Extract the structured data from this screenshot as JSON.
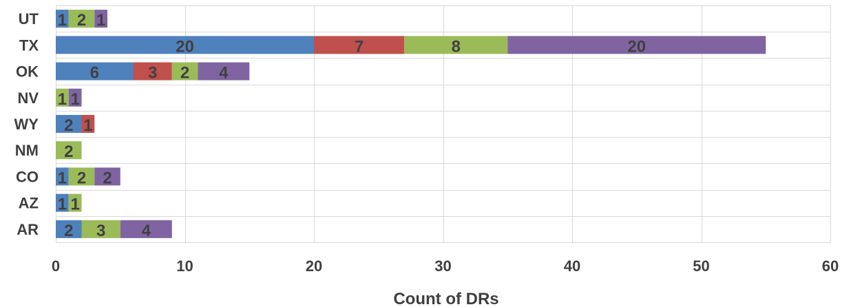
{
  "chart_data": {
    "type": "bar",
    "orientation": "horizontal",
    "stacked": true,
    "categories": [
      "UT",
      "TX",
      "OK",
      "NV",
      "WY",
      "NM",
      "CO",
      "AZ",
      "AR"
    ],
    "series": [
      {
        "color": "#4f81bd",
        "values": [
          1,
          20,
          6,
          0,
          2,
          0,
          1,
          1,
          2
        ]
      },
      {
        "color": "#c0504d",
        "values": [
          0,
          7,
          3,
          0,
          1,
          0,
          0,
          0,
          0
        ]
      },
      {
        "color": "#9bbb59",
        "values": [
          2,
          8,
          2,
          1,
          0,
          2,
          2,
          1,
          3
        ]
      },
      {
        "color": "#8064a2",
        "values": [
          1,
          20,
          4,
          1,
          0,
          0,
          2,
          0,
          4
        ]
      }
    ],
    "xlabel": "Count of DRs",
    "ylabel": "",
    "xlim": [
      0,
      60
    ],
    "xticks": [
      0,
      10,
      20,
      30,
      40,
      50,
      60
    ],
    "grid": true,
    "legend": "none"
  }
}
